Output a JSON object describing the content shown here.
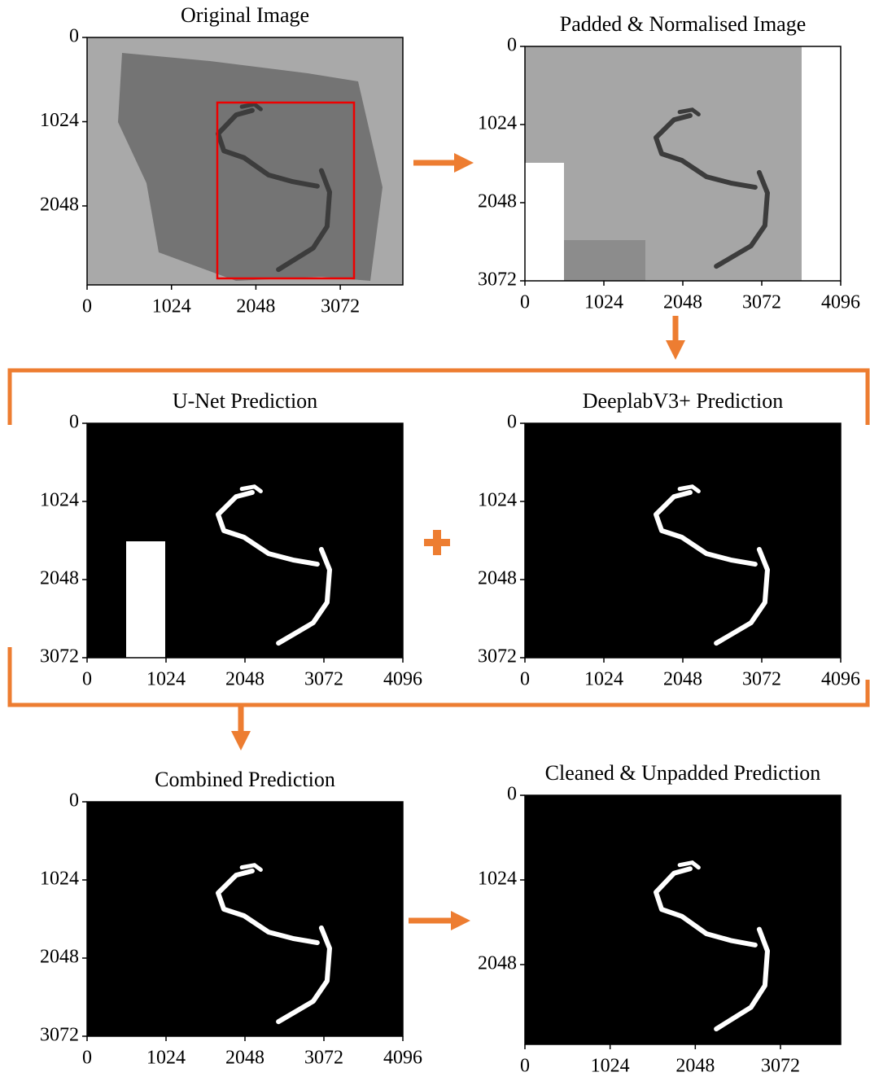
{
  "panels": [
    {
      "title": "Original Image",
      "xlim": [
        0,
        3831
      ],
      "ylim": [
        0,
        3008
      ],
      "xticks": [
        0,
        1024,
        2048,
        3072
      ],
      "yticks": [
        0,
        1024,
        2048
      ]
    },
    {
      "title": "Padded & Normalised Image",
      "xlim": [
        0,
        4096
      ],
      "ylim": [
        0,
        3072
      ],
      "xticks": [
        0,
        1024,
        2048,
        3072,
        4096
      ],
      "yticks": [
        0,
        1024,
        2048,
        3072
      ]
    },
    {
      "title": "U-Net Prediction",
      "xlim": [
        0,
        4096
      ],
      "ylim": [
        0,
        3072
      ],
      "xticks": [
        0,
        1024,
        2048,
        3072,
        4096
      ],
      "yticks": [
        0,
        1024,
        2048,
        3072
      ]
    },
    {
      "title": "DeeplabV3+ Prediction",
      "xlim": [
        0,
        4096
      ],
      "ylim": [
        0,
        3072
      ],
      "xticks": [
        0,
        1024,
        2048,
        3072,
        4096
      ],
      "yticks": [
        0,
        1024,
        2048,
        3072
      ]
    },
    {
      "title": "Combined Prediction",
      "xlim": [
        0,
        4096
      ],
      "ylim": [
        0,
        3072
      ],
      "xticks": [
        0,
        1024,
        2048,
        3072,
        4096
      ],
      "yticks": [
        0,
        1024,
        2048,
        3072
      ]
    },
    {
      "title": "Cleaned & Unpadded Prediction",
      "xlim": [
        0,
        3796
      ],
      "ylim": [
        0,
        3013
      ],
      "xticks": [
        0,
        1024,
        2048,
        3072
      ],
      "yticks": [
        0,
        1024,
        2048
      ]
    }
  ]
}
